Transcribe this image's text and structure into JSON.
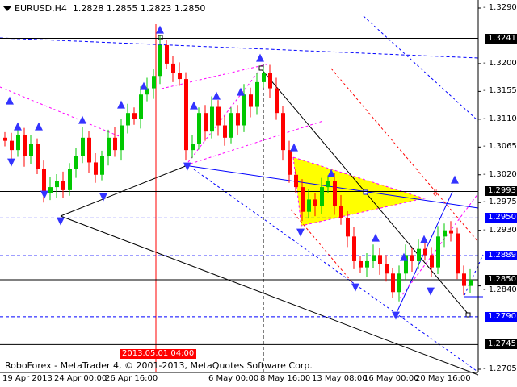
{
  "header": {
    "symbol": "EURUSD,H4",
    "ohlc": "1.2828 1.2855 1.2823 1.2850"
  },
  "footer": {
    "copyright": "RoboForex - MetaTrader 4, © 2001-2013, MetaQuotes Software Corp."
  },
  "colors": {
    "bull": "#00c800",
    "bear": "#ff0000",
    "level": "#000000",
    "target": "#0000ff",
    "triangle": "#ffff00"
  },
  "chart_data": {
    "type": "candlestick",
    "symbol": "EURUSD",
    "timeframe": "H4",
    "ylim": [
      1.269,
      1.3305
    ],
    "y_ticks": [
      "1.3290",
      "1.3200",
      "1.3155",
      "1.3110",
      "1.3065",
      "1.3020",
      "1.2975",
      "1.2930",
      "1.2840",
      "1.2705"
    ],
    "x_ticks": [
      "19 Apr 2013",
      "24 Apr 00:00",
      "26 Apr 16:00",
      "6 May 00:00",
      "8 May 16:00",
      "13 May 08:00",
      "16 May 00:00",
      "20 May 16:00"
    ],
    "crosshair_time": "2013.05.01 04:00",
    "closes": [
      1.3075,
      1.306,
      1.3085,
      1.305,
      1.307,
      1.303,
      1.299,
      1.3,
      1.301,
      1.2995,
      1.303,
      1.305,
      1.308,
      1.304,
      1.302,
      1.305,
      1.308,
      1.306,
      1.31,
      1.312,
      1.311,
      1.315,
      1.316,
      1.318,
      1.323,
      1.32,
      1.3185,
      1.3175,
      1.306,
      1.307,
      1.312,
      1.309,
      1.313,
      1.31,
      1.308,
      1.312,
      1.31,
      1.315,
      1.313,
      1.317,
      1.3185,
      1.316,
      1.312,
      1.306,
      1.302,
      1.3,
      1.296,
      1.298,
      1.297,
      1.3,
      1.301,
      1.297,
      1.295,
      1.292,
      1.288,
      1.287,
      1.288,
      1.289,
      1.2875,
      1.286,
      1.283,
      1.286,
      1.289,
      1.288,
      1.29,
      1.289,
      1.287,
      1.292,
      1.293,
      1.2925,
      1.286,
      1.284,
      1.285
    ],
    "levels": [
      {
        "price": "1.3241",
        "kind": "resistance",
        "color": "#000000"
      },
      {
        "price": "1.2993",
        "kind": "pivot",
        "color": "#000000"
      },
      {
        "price": "1.2950",
        "kind": "target",
        "color": "#0000ff"
      },
      {
        "price": "1.2889",
        "kind": "target",
        "color": "#0000ff"
      },
      {
        "price": "1.2850",
        "kind": "current",
        "color": "#000000"
      },
      {
        "price": "1.2790",
        "kind": "target",
        "color": "#0000ff"
      },
      {
        "price": "1.2745",
        "kind": "support",
        "color": "#000000"
      }
    ]
  }
}
